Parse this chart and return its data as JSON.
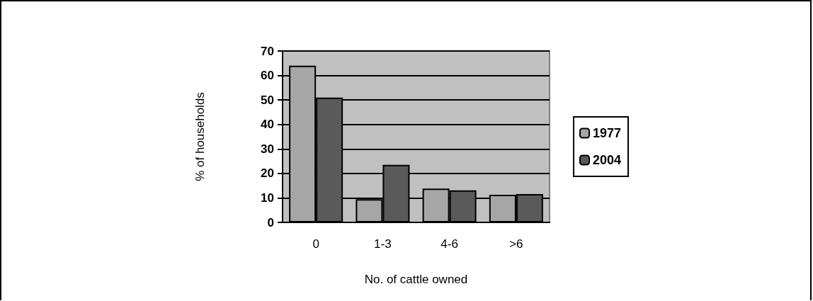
{
  "chart_data": {
    "type": "bar",
    "xlabel": "No. of cattle owned",
    "ylabel": "% of households",
    "categories": [
      "0",
      "1-3",
      "4-6",
      ">6"
    ],
    "series": [
      {
        "name": "1977",
        "color": "#a6a6a6",
        "values": [
          64,
          9.5,
          13.8,
          11.3
        ]
      },
      {
        "name": "2004",
        "color": "#5a5a5a",
        "values": [
          51,
          23.5,
          13.1,
          11.6
        ]
      }
    ],
    "ylim": [
      0,
      70
    ],
    "yticks": [
      0,
      10,
      20,
      30,
      40,
      50,
      60,
      70
    ],
    "grid": "y",
    "legend": "right"
  }
}
